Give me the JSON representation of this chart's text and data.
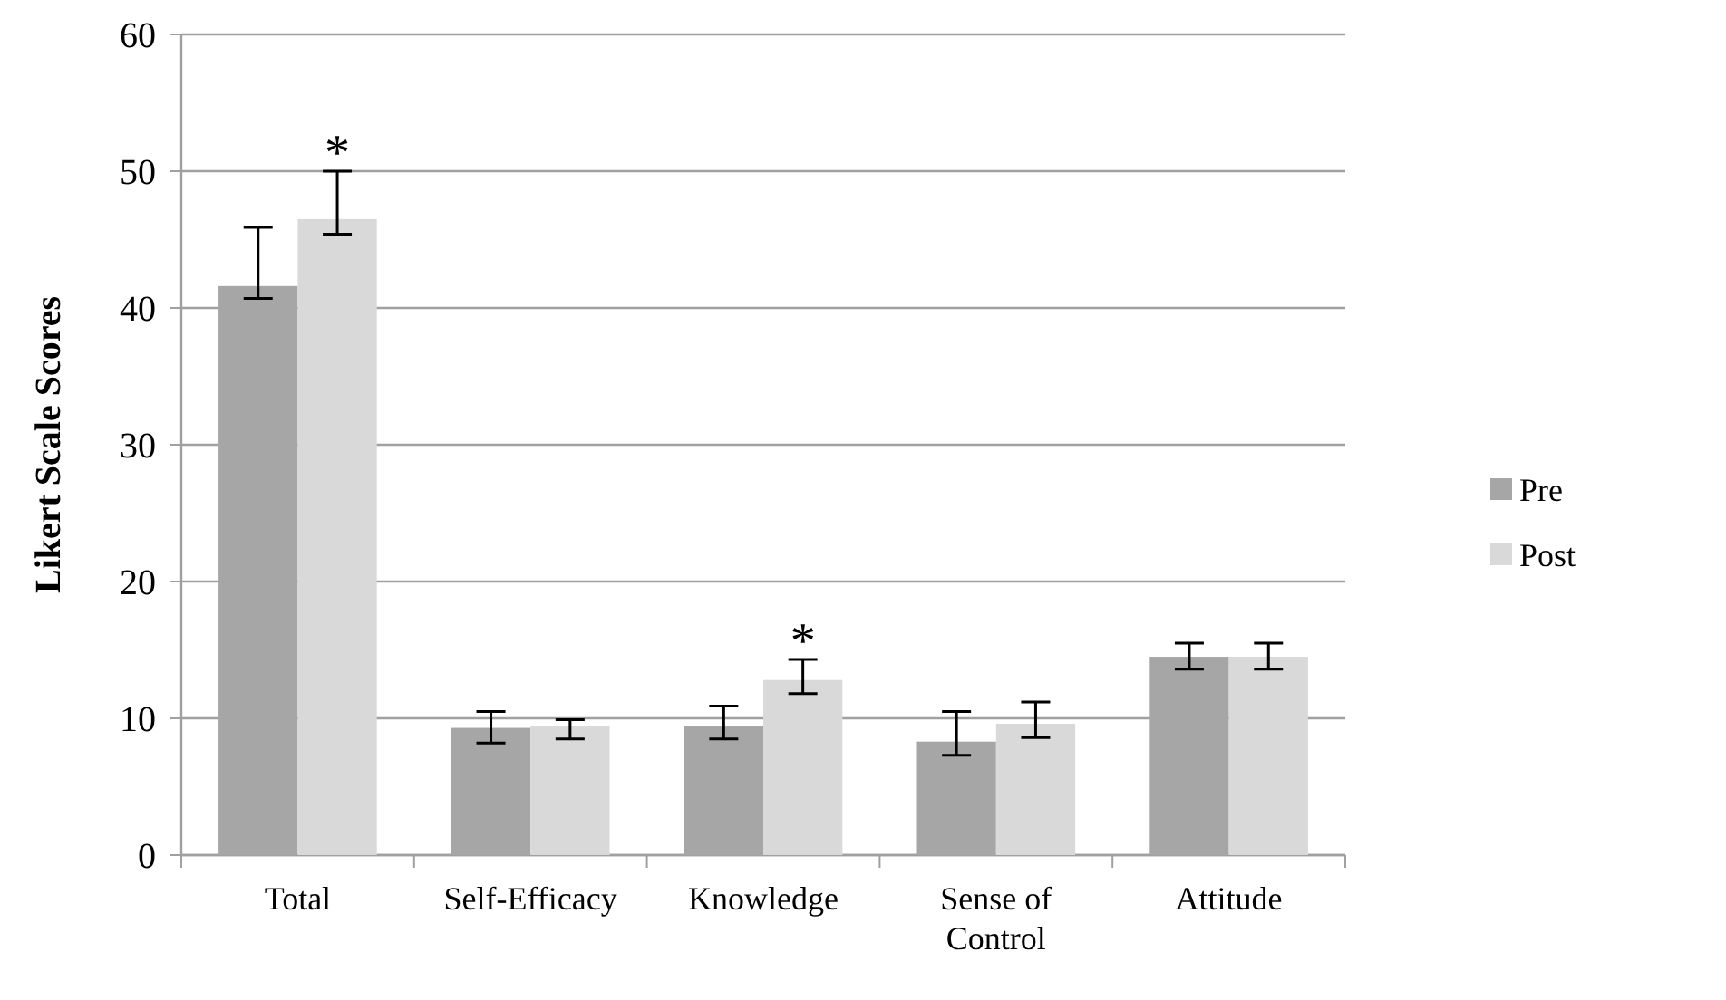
{
  "chart_data": {
    "type": "bar",
    "ylabel": "Likert Scale Scores",
    "categories": [
      "Total",
      "Self-Efficacy",
      "Knowledge",
      "Sense of Control",
      "Attitude"
    ],
    "series": [
      {
        "name": "Pre",
        "color": "#a6a6a6",
        "values": [
          41.6,
          9.3,
          9.4,
          8.3,
          14.5
        ],
        "errors": [
          [
            40.7,
            45.9
          ],
          [
            8.2,
            10.5
          ],
          [
            8.5,
            10.9
          ],
          [
            7.3,
            10.5
          ],
          [
            13.6,
            15.5
          ]
        ]
      },
      {
        "name": "Post",
        "color": "#d9d9d9",
        "values": [
          46.5,
          9.4,
          12.8,
          9.6,
          14.5
        ],
        "errors": [
          [
            45.4,
            50.0
          ],
          [
            8.5,
            9.9
          ],
          [
            11.8,
            14.3
          ],
          [
            8.6,
            11.2
          ],
          [
            13.6,
            15.5
          ]
        ]
      }
    ],
    "ylim": [
      0,
      60
    ],
    "yticks": [
      0,
      10,
      20,
      30,
      40,
      50,
      60
    ],
    "grid": "y",
    "legend": "right",
    "annotations": [
      {
        "text": "*",
        "x": "Total",
        "y": 46.5
      },
      {
        "text": "*",
        "x": "Knowledge",
        "y": 12.8
      }
    ]
  }
}
